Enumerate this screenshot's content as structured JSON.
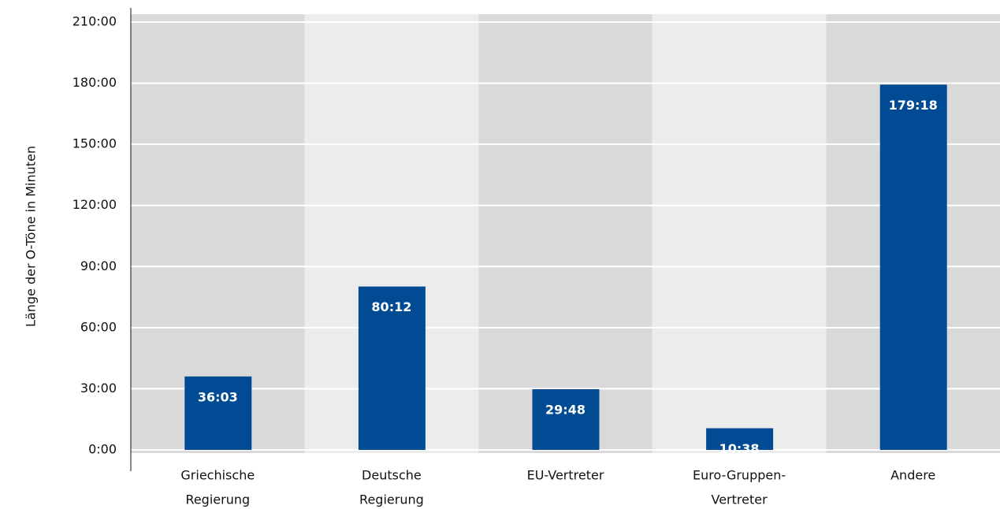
{
  "chart_data": {
    "type": "bar",
    "y_axis_label": "Länge der O-Töne in Minuten",
    "categories": [
      [
        "Griechische",
        "Regierung"
      ],
      [
        "Deutsche",
        "Regierung"
      ],
      [
        "EU-Vertreter"
      ],
      [
        "Euro-Gruppen-",
        "Vertreter"
      ],
      [
        "Andere"
      ]
    ],
    "values": [
      36.05,
      80.2,
      29.8,
      10.633,
      179.3
    ],
    "value_labels": [
      "36:03",
      "80:12",
      "29:48",
      "10:38",
      "179:18"
    ],
    "color": "#004b93",
    "ylim": [
      0,
      210
    ],
    "yticks": [
      {
        "value": 0,
        "label": "0:00"
      },
      {
        "value": 30,
        "label": "30:00"
      },
      {
        "value": 60,
        "label": "60:00"
      },
      {
        "value": 90,
        "label": "90:00"
      },
      {
        "value": 120,
        "label": "120:00"
      },
      {
        "value": 150,
        "label": "150:00"
      },
      {
        "value": 180,
        "label": "180:00"
      },
      {
        "value": 210,
        "label": "210:00"
      }
    ],
    "grid": true
  }
}
